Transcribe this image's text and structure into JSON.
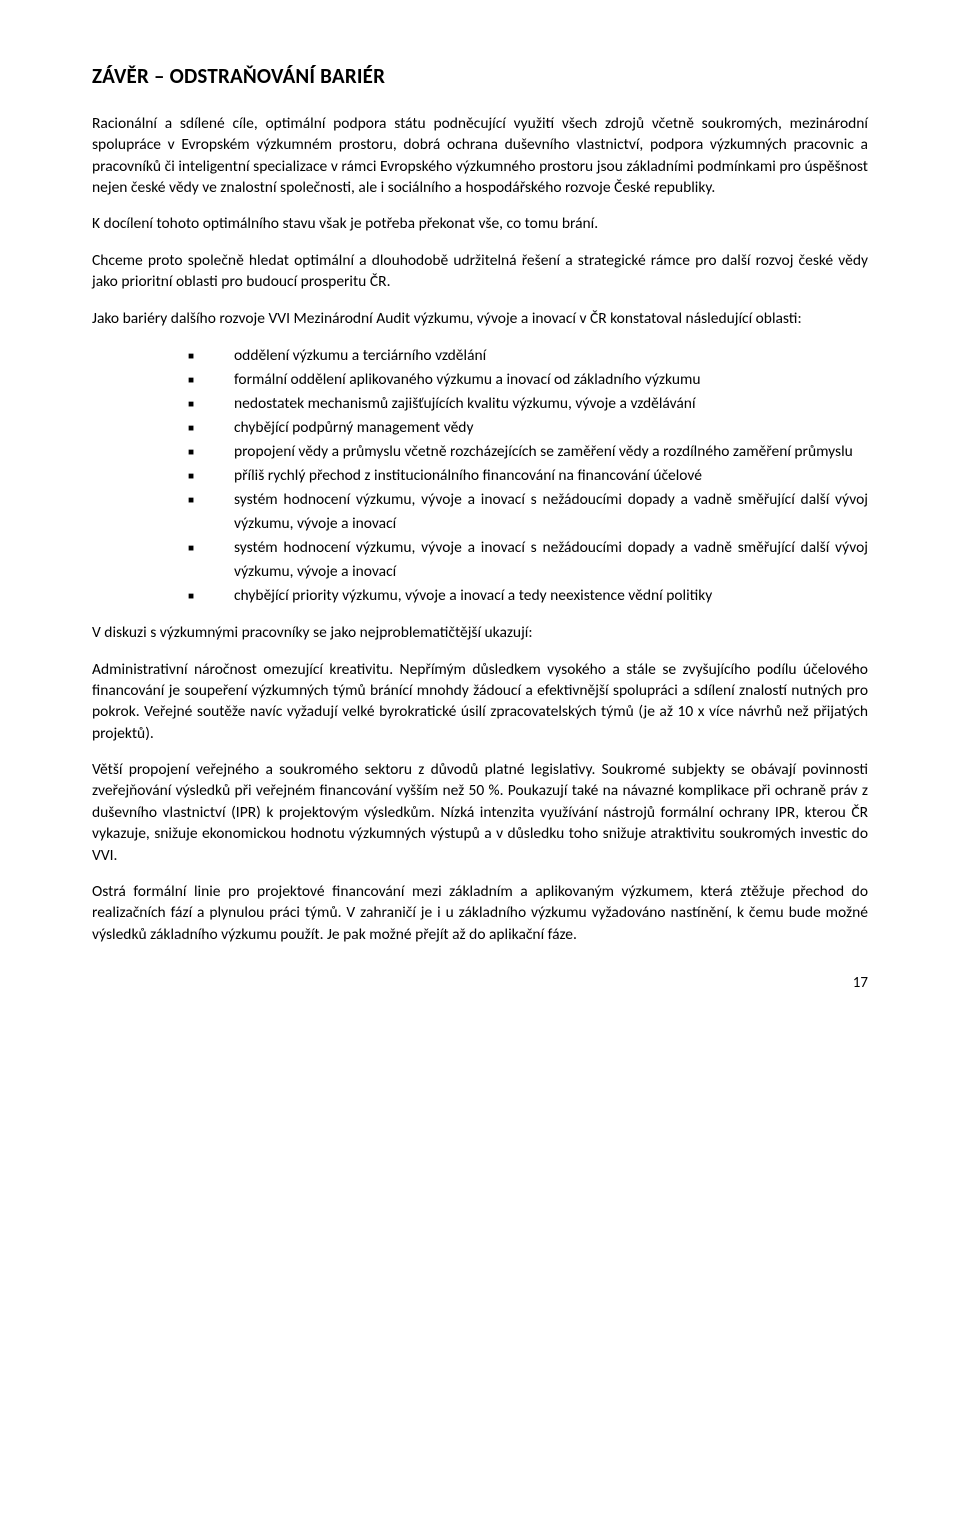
{
  "title": "ZÁVĚR – ODSTRAŇOVÁNÍ BARIÉR",
  "p1": "Racionální a sdílené cíle, optimální podpora státu podněcující využití všech zdrojů včetně soukromých, mezinárodní spolupráce v Evropském výzkumném prostoru, dobrá ochrana duševního vlastnictví, podpora výzkumných pracovnic a pracovníků či inteligentní specializace v rámci Evropského výzkumného prostoru jsou základními podmínkami pro úspěšnost nejen české vědy ve znalostní společnosti, ale i sociálního a hospodářského rozvoje České republiky.",
  "p2": "K docílení tohoto optimálního stavu však je potřeba překonat vše, co tomu brání.",
  "p3": "Chceme proto společně hledat optimální a dlouhodobě udržitelná řešení a strategické rámce pro další rozvoj české vědy jako prioritní oblasti pro budoucí prosperitu ČR.",
  "p4": "Jako bariéry dalšího rozvoje VVI Mezinárodní Audit výzkumu, vývoje a inovací v ČR konstatoval následující oblasti:",
  "barriers": [
    "oddělení výzkumu a terciárního vzdělání",
    "formální oddělení aplikovaného výzkumu a inovací od základního výzkumu",
    "nedostatek mechanismů zajišťujících kvalitu výzkumu, vývoje a vzdělávání",
    "chybějící podpůrný management vědy",
    "propojení vědy a průmyslu včetně rozcházejících se zaměření vědy a rozdílného zaměření průmyslu",
    "příliš rychlý přechod z institucionálního financování na financování účelové",
    "systém hodnocení výzkumu, vývoje a inovací s nežádoucími dopady a vadně směřující další vývoj výzkumu, vývoje a inovací",
    "systém hodnocení výzkumu, vývoje a inovací s nežádoucími dopady a vadně směřující další vývoj výzkumu, vývoje a inovací",
    "chybějící priority výzkumu, vývoje a inovací a tedy neexistence vědní politiky"
  ],
  "p5": "V diskuzi s výzkumnými pracovníky se jako nejproblematičtější ukazují:",
  "p6": "Administrativní náročnost omezující kreativitu. Nepřímým důsledkem vysokého a stále se zvyšujícího podílu účelového financování je soupeření výzkumných týmů bránící mnohdy žádoucí a efektivnější spolupráci a sdílení znalostí nutných pro pokrok. Veřejné soutěže navíc vyžadují velké byrokratické úsilí zpracovatelských týmů (je až 10 x více návrhů než přijatých projektů).",
  "p7": "Větší propojení veřejného a soukromého sektoru z důvodů platné legislativy. Soukromé subjekty se obávají povinnosti zveřejňování výsledků při veřejném financování vyšším než 50 %. Poukazují také na návazné komplikace při ochraně práv z duševního vlastnictví (IPR) k projektovým výsledkům. Nízká intenzita využívání nástrojů formální ochrany IPR, kterou ČR vykazuje, snižuje ekonomickou hodnotu výzkumných výstupů a v důsledku toho snižuje atraktivitu soukromých investic do VVI.",
  "p8": "Ostrá formální linie pro projektové financování mezi základním a aplikovaným výzkumem, která ztěžuje přechod do realizačních fází a plynulou práci týmů. V zahraničí je i u základního výzkumu vyžadováno nastínění, k čemu bude možné výsledků základního výzkumu použít. Je pak možné přejít až do aplikační fáze.",
  "page_number": "17"
}
